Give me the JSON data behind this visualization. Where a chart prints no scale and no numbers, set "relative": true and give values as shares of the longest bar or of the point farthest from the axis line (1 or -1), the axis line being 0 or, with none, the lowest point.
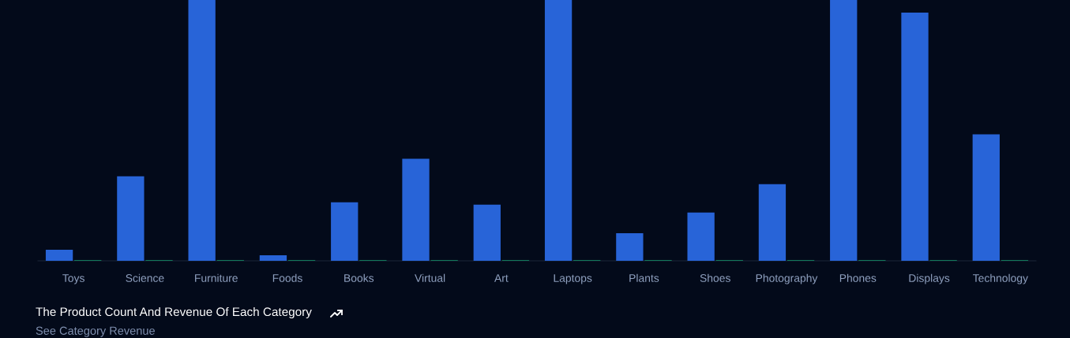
{
  "chart_data": {
    "type": "bar",
    "relative": true,
    "title": "The Product Count And Revenue Of Each Category",
    "subtitle": "See Category Revenue",
    "categories": [
      "Toys",
      "Science",
      "Furniture",
      "Foods",
      "Books",
      "Virtual",
      "Art",
      "Laptops",
      "Plants",
      "Shoes",
      "Photography",
      "Phones",
      "Displays",
      "Technology"
    ],
    "series": [
      {
        "color": "#2864d8",
        "values": [
          0.042,
          0.324,
          1,
          0.021,
          0.224,
          0.391,
          0.215,
          1,
          0.106,
          0.185,
          0.294,
          1,
          0.952,
          0.485
        ]
      },
      {
        "color": "#13795b",
        "values": [
          0.003,
          0.003,
          0.003,
          0.003,
          0.003,
          0.003,
          0.003,
          0.003,
          0.003,
          0.003,
          0.003,
          0.003,
          0.003,
          0.003
        ]
      }
    ],
    "legend": false,
    "grid": false
  }
}
